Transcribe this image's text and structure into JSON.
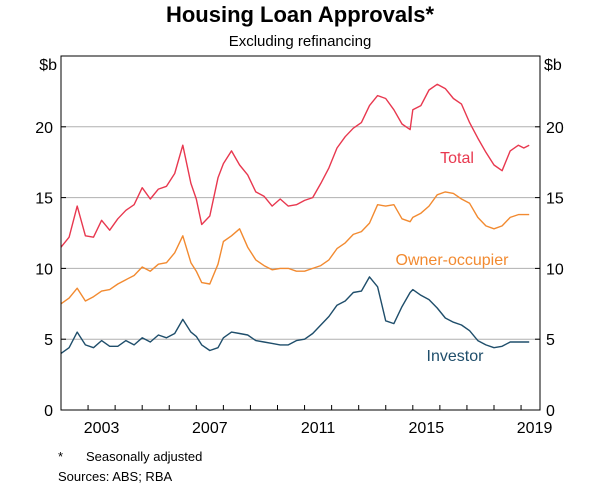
{
  "chart_data": {
    "type": "line",
    "title": "Housing Loan Approvals*",
    "subtitle": "Excluding refinancing",
    "yunit_left": "$b",
    "yunit_right": "$b",
    "ylim": [
      0,
      25
    ],
    "yticks": [
      0,
      5,
      10,
      15,
      20
    ],
    "xlim": [
      2002.0,
      2019.7
    ],
    "xticks": [
      2003,
      2007,
      2011,
      2015,
      2019
    ],
    "grid": true,
    "series": [
      {
        "name": "Total",
        "color": "#e8384f",
        "x": [
          2002.0,
          2002.3,
          2002.6,
          2002.9,
          2003.2,
          2003.5,
          2003.8,
          2004.1,
          2004.4,
          2004.7,
          2005.0,
          2005.3,
          2005.6,
          2005.9,
          2006.2,
          2006.5,
          2006.8,
          2007.0,
          2007.2,
          2007.5,
          2007.8,
          2008.0,
          2008.3,
          2008.6,
          2008.9,
          2009.2,
          2009.5,
          2009.8,
          2010.1,
          2010.4,
          2010.7,
          2011.0,
          2011.3,
          2011.6,
          2011.9,
          2012.2,
          2012.5,
          2012.8,
          2013.1,
          2013.4,
          2013.7,
          2014.0,
          2014.3,
          2014.6,
          2014.9,
          2015.0,
          2015.3,
          2015.6,
          2015.9,
          2016.2,
          2016.5,
          2016.8,
          2017.1,
          2017.4,
          2017.7,
          2018.0,
          2018.3,
          2018.6,
          2018.9,
          2019.1,
          2019.3
        ],
        "values": [
          11.5,
          12.2,
          14.4,
          12.3,
          12.2,
          13.4,
          12.7,
          13.5,
          14.1,
          14.5,
          15.7,
          14.9,
          15.6,
          15.8,
          16.7,
          18.7,
          16.0,
          14.9,
          13.1,
          13.7,
          16.4,
          17.4,
          18.3,
          17.3,
          16.6,
          15.4,
          15.1,
          14.4,
          14.9,
          14.4,
          14.5,
          14.8,
          15.0,
          16.0,
          17.1,
          18.5,
          19.3,
          19.9,
          20.3,
          21.5,
          22.2,
          22.0,
          21.2,
          20.2,
          19.8,
          21.2,
          21.5,
          22.6,
          23.0,
          22.7,
          22.0,
          21.6,
          20.3,
          19.2,
          18.2,
          17.3,
          16.9,
          18.3,
          18.7,
          18.5,
          18.7
        ],
        "label": "Total"
      },
      {
        "name": "Owner-occupier",
        "color": "#f28a30",
        "x": [
          2002.0,
          2002.3,
          2002.6,
          2002.9,
          2003.2,
          2003.5,
          2003.8,
          2004.1,
          2004.4,
          2004.7,
          2005.0,
          2005.3,
          2005.6,
          2005.9,
          2006.2,
          2006.5,
          2006.8,
          2007.0,
          2007.2,
          2007.5,
          2007.8,
          2008.0,
          2008.3,
          2008.6,
          2008.9,
          2009.2,
          2009.5,
          2009.8,
          2010.1,
          2010.4,
          2010.7,
          2011.0,
          2011.3,
          2011.6,
          2011.9,
          2012.2,
          2012.5,
          2012.8,
          2013.1,
          2013.4,
          2013.7,
          2014.0,
          2014.3,
          2014.6,
          2014.9,
          2015.0,
          2015.3,
          2015.6,
          2015.9,
          2016.2,
          2016.5,
          2016.8,
          2017.1,
          2017.4,
          2017.7,
          2018.0,
          2018.3,
          2018.6,
          2018.9,
          2019.1,
          2019.3
        ],
        "values": [
          7.5,
          7.9,
          8.6,
          7.7,
          8.0,
          8.4,
          8.5,
          8.9,
          9.2,
          9.5,
          10.1,
          9.8,
          10.3,
          10.4,
          11.1,
          12.3,
          10.4,
          9.8,
          9.0,
          8.9,
          10.3,
          11.9,
          12.3,
          12.8,
          11.5,
          10.6,
          10.2,
          9.9,
          10.0,
          10.0,
          9.8,
          9.8,
          10.0,
          10.2,
          10.6,
          11.4,
          11.8,
          12.4,
          12.6,
          13.2,
          14.5,
          14.4,
          14.5,
          13.5,
          13.3,
          13.6,
          13.9,
          14.4,
          15.2,
          15.4,
          15.3,
          14.9,
          14.6,
          13.6,
          13.0,
          12.8,
          13.0,
          13.6,
          13.8,
          13.8,
          13.8
        ],
        "label": "Owner-occupier"
      },
      {
        "name": "Investor",
        "color": "#1f4e6b",
        "x": [
          2002.0,
          2002.3,
          2002.6,
          2002.9,
          2003.2,
          2003.5,
          2003.8,
          2004.1,
          2004.4,
          2004.7,
          2005.0,
          2005.3,
          2005.6,
          2005.9,
          2006.2,
          2006.5,
          2006.8,
          2007.0,
          2007.2,
          2007.5,
          2007.8,
          2008.0,
          2008.3,
          2008.6,
          2008.9,
          2009.2,
          2009.5,
          2009.8,
          2010.1,
          2010.4,
          2010.7,
          2011.0,
          2011.3,
          2011.6,
          2011.9,
          2012.2,
          2012.5,
          2012.8,
          2013.1,
          2013.4,
          2013.7,
          2014.0,
          2014.3,
          2014.6,
          2014.9,
          2015.0,
          2015.3,
          2015.6,
          2015.9,
          2016.2,
          2016.5,
          2016.8,
          2017.1,
          2017.4,
          2017.7,
          2018.0,
          2018.3,
          2018.6,
          2018.9,
          2019.1,
          2019.3
        ],
        "values": [
          4.0,
          4.4,
          5.5,
          4.6,
          4.4,
          4.9,
          4.5,
          4.5,
          4.9,
          4.6,
          5.1,
          4.8,
          5.3,
          5.1,
          5.4,
          6.4,
          5.5,
          5.2,
          4.6,
          4.2,
          4.4,
          5.1,
          5.5,
          5.4,
          5.3,
          4.9,
          4.8,
          4.7,
          4.6,
          4.6,
          4.9,
          5.0,
          5.4,
          6.0,
          6.6,
          7.4,
          7.7,
          8.3,
          8.4,
          9.4,
          8.7,
          6.3,
          6.1,
          7.3,
          8.3,
          8.5,
          8.1,
          7.8,
          7.2,
          6.5,
          6.2,
          6.0,
          5.6,
          4.9,
          4.6,
          4.4,
          4.5,
          4.8,
          4.8,
          4.8,
          4.8
        ],
        "label": "Investor"
      }
    ]
  },
  "footnote": {
    "mark": "*",
    "text": "Seasonally adjusted"
  },
  "sources": "Sources:   ABS; RBA"
}
